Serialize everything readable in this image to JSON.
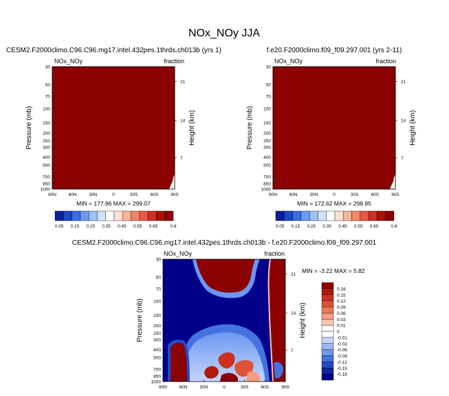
{
  "page_title": "NOx_NOy JJA",
  "colors": {
    "dark_red": "#8b0000",
    "dark_blue": "#00008b"
  },
  "chart_data": [
    {
      "type": "heatmap",
      "id": "left",
      "title": "CESM2.F2000climo.C96.C96.mg17.intel.432pes.1thrds.ch013b (yrs 1)",
      "variable": "NOx_NOy",
      "units": "fraction",
      "xlabel": "",
      "ylabel": "Pressure (mb)",
      "ylabel_right": "Height (km)",
      "x_ticks": [
        "90N",
        "60N",
        "30N",
        "0",
        "30S",
        "60S",
        "90S"
      ],
      "y_ticks": [
        "30",
        "50",
        "70",
        "100",
        "150",
        "200",
        "250",
        "300",
        "400",
        "500",
        "700",
        "850",
        "1000"
      ],
      "y_ticks_right": [
        "21",
        "14",
        "7"
      ],
      "min_max_text": "MIN = 177.96   MAX = 299.07",
      "fill_value_color": "#8b0000"
    },
    {
      "type": "heatmap",
      "id": "right",
      "title": "f.e20.F2000climo.f09_f09.297.001 (yrs 2-11)",
      "variable": "NOx_NOy",
      "units": "fraction",
      "xlabel": "",
      "ylabel": "Pressure (mb)",
      "ylabel_right": "Height (km)",
      "x_ticks": [
        "90N",
        "60N",
        "30N",
        "0",
        "30S",
        "60S",
        "90S"
      ],
      "y_ticks": [
        "30",
        "50",
        "70",
        "100",
        "150",
        "200",
        "250",
        "300",
        "400",
        "500",
        "700",
        "850",
        "1000"
      ],
      "y_ticks_right": [
        "21",
        "14",
        "7"
      ],
      "min_max_text": "MIN = 172.62   MAX = 298.95",
      "fill_value_color": "#8b0000"
    },
    {
      "type": "heatmap",
      "id": "diff",
      "title": "CESM2.F2000climo.C96.C96.mg17.intel.432pes.1thrds.ch013b - f.e20.F2000climo.f09_f09.297.001",
      "variable": "NOx_NOy",
      "units": "fraction",
      "xlabel": "",
      "ylabel": "Pressure (mb)",
      "ylabel_right": "Height (km)",
      "x_ticks": [
        "90N",
        "60N",
        "30N",
        "0",
        "30S",
        "60S",
        "90S"
      ],
      "y_ticks": [
        "30",
        "50",
        "70",
        "100",
        "150",
        "200",
        "250",
        "300",
        "400",
        "500",
        "700",
        "850",
        "1000"
      ],
      "y_ticks_right": [
        "21",
        "14",
        "7"
      ],
      "min_max_text": "MIN =  -3.22   MAX =   5.82"
    }
  ],
  "colorbar_abs": {
    "labels": [
      "0.05",
      "0.15",
      "0.25",
      "0.35",
      "0.45",
      "0.55",
      "0.65",
      "0.8"
    ],
    "colors": [
      "#0a1e9a",
      "#1f46c8",
      "#3a6ee8",
      "#6b98f2",
      "#9ec0f8",
      "#d3e2fb",
      "#ffffff",
      "#fde2d4",
      "#f9b59a",
      "#f2856a",
      "#e55a42",
      "#cd3020",
      "#a81208",
      "#8b0000"
    ]
  },
  "colorbar_diff": {
    "labels": [
      "0.18",
      "0.15",
      "0.12",
      "0.09",
      "0.06",
      "0.03",
      "0.01",
      "0",
      "-0.01",
      "-0.03",
      "-0.06",
      "-0.09",
      "-0.12",
      "-0.15",
      "-0.18"
    ],
    "colors": [
      "#8b0000",
      "#b01a0c",
      "#cc3120",
      "#e05236",
      "#ef7656",
      "#f79c7e",
      "#fcc5ad",
      "#ffffff",
      "#ffffff",
      "#c5d6fb",
      "#9ab8f4",
      "#6e97ec",
      "#4472de",
      "#2349c4",
      "#0d25a0",
      "#00008b"
    ]
  }
}
